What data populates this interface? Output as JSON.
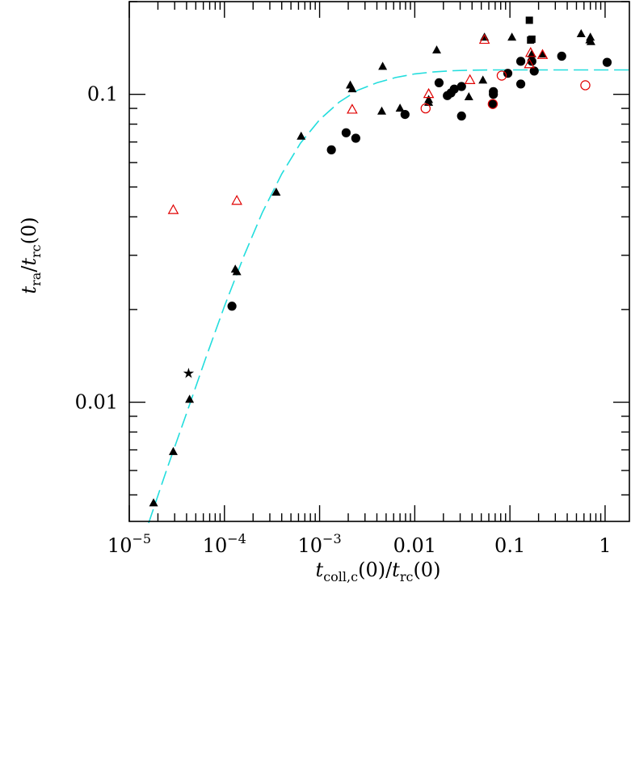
{
  "chart_data": {
    "type": "scatter",
    "x_scale": "log",
    "y_scale": "log",
    "xlim": [
      1e-05,
      1.8
    ],
    "ylim": [
      0.0041,
      0.2
    ],
    "xlabel": {
      "main": "t",
      "sub": "coll,c",
      "rest": "(0)/",
      "main2": "t",
      "sub2": "rc",
      "end": "(0)"
    },
    "ylabel": {
      "main": "t",
      "sub": "ra",
      "rest": "/",
      "main2": "t",
      "sub2": "rc",
      "end": "(0)"
    },
    "x_tick_labels": [
      {
        "value": 1e-05,
        "base": "10",
        "exp": "−5"
      },
      {
        "value": 0.0001,
        "base": "10",
        "exp": "−4"
      },
      {
        "value": 0.001,
        "base": "10",
        "exp": "−3"
      },
      {
        "value": 0.01,
        "text": "0.01"
      },
      {
        "value": 0.1,
        "text": "0.1"
      },
      {
        "value": 1,
        "text": "1"
      }
    ],
    "y_tick_labels": [
      {
        "value": 0.01,
        "text": "0.01"
      },
      {
        "value": 0.1,
        "text": "0.1"
      }
    ],
    "colors": {
      "filled": "#000000",
      "open_red": "#e00000",
      "fit": "#22dddd"
    },
    "series": [
      {
        "marker": "filled-triangle",
        "color": "#000000",
        "points": [
          [
            1.8e-05,
            0.0047
          ],
          [
            2.9e-05,
            0.0069
          ],
          [
            4.3e-05,
            0.0102
          ],
          [
            0.00013,
            0.027
          ],
          [
            0.000135,
            0.0265
          ],
          [
            0.00035,
            0.048
          ],
          [
            0.00064,
            0.073
          ],
          [
            0.0021,
            0.107
          ],
          [
            0.0022,
            0.104
          ],
          [
            0.0045,
            0.088
          ],
          [
            0.0046,
            0.123
          ],
          [
            0.007,
            0.09
          ],
          [
            0.014,
            0.094
          ],
          [
            0.014,
            0.096
          ],
          [
            0.017,
            0.139
          ],
          [
            0.037,
            0.098
          ],
          [
            0.052,
            0.111
          ],
          [
            0.054,
            0.153
          ],
          [
            0.105,
            0.153
          ],
          [
            0.17,
            0.135
          ],
          [
            0.17,
            0.13
          ],
          [
            0.22,
            0.135
          ],
          [
            0.56,
            0.157
          ],
          [
            0.69,
            0.15
          ],
          [
            0.7,
            0.153
          ],
          [
            0.71,
            0.148
          ]
        ]
      },
      {
        "marker": "filled-circle",
        "color": "#000000",
        "points": [
          [
            0.00012,
            0.0205
          ],
          [
            0.00133,
            0.066
          ],
          [
            0.0019,
            0.075
          ],
          [
            0.0024,
            0.072
          ],
          [
            0.0079,
            0.086
          ],
          [
            0.018,
            0.109
          ],
          [
            0.022,
            0.099
          ],
          [
            0.024,
            0.101
          ],
          [
            0.026,
            0.104
          ],
          [
            0.031,
            0.085
          ],
          [
            0.031,
            0.106
          ],
          [
            0.066,
            0.093
          ],
          [
            0.067,
            0.1
          ],
          [
            0.067,
            0.102
          ],
          [
            0.095,
            0.117
          ],
          [
            0.13,
            0.108
          ],
          [
            0.13,
            0.128
          ],
          [
            0.17,
            0.128
          ],
          [
            0.18,
            0.119
          ],
          [
            0.35,
            0.133
          ],
          [
            1.05,
            0.127
          ]
        ]
      },
      {
        "marker": "filled-square",
        "color": "#000000",
        "points": [
          [
            0.16,
            0.174
          ],
          [
            0.165,
            0.15
          ],
          [
            0.17,
            0.151
          ]
        ]
      },
      {
        "marker": "star",
        "color": "#000000",
        "points": [
          [
            4.2e-05,
            0.0124
          ]
        ]
      },
      {
        "marker": "open-triangle",
        "color": "#e00000",
        "points": [
          [
            2.9e-05,
            0.042
          ],
          [
            0.000135,
            0.045
          ],
          [
            0.0022,
            0.089
          ],
          [
            0.014,
            0.1
          ],
          [
            0.038,
            0.111
          ],
          [
            0.054,
            0.15
          ],
          [
            0.16,
            0.125
          ],
          [
            0.165,
            0.136
          ],
          [
            0.22,
            0.134
          ]
        ]
      },
      {
        "marker": "open-circle",
        "color": "#e00000",
        "points": [
          [
            0.013,
            0.09
          ],
          [
            0.066,
            0.093
          ],
          [
            0.082,
            0.115
          ],
          [
            0.62,
            0.107
          ]
        ]
      }
    ],
    "fit_curve": {
      "style": "long-dashed",
      "color": "#22dddd",
      "points": [
        [
          1.6e-05,
          0.00405
        ],
        [
          2.5e-05,
          0.0061
        ],
        [
          4e-05,
          0.0092
        ],
        [
          6.3e-05,
          0.0138
        ],
        [
          0.0001,
          0.0205
        ],
        [
          0.00016,
          0.0298
        ],
        [
          0.00025,
          0.0413
        ],
        [
          0.0004,
          0.0551
        ],
        [
          0.00063,
          0.0694
        ],
        [
          0.001,
          0.0827
        ],
        [
          0.0016,
          0.0942
        ],
        [
          0.0025,
          0.103
        ],
        [
          0.004,
          0.109
        ],
        [
          0.0063,
          0.1134
        ],
        [
          0.01,
          0.1165
        ],
        [
          0.016,
          0.1183
        ],
        [
          0.025,
          0.1193
        ],
        [
          0.04,
          0.1198
        ],
        [
          0.063,
          0.12
        ],
        [
          0.1,
          0.12
        ],
        [
          0.25,
          0.12
        ],
        [
          0.63,
          0.12
        ],
        [
          1.0,
          0.12
        ],
        [
          1.8,
          0.12
        ]
      ]
    }
  }
}
